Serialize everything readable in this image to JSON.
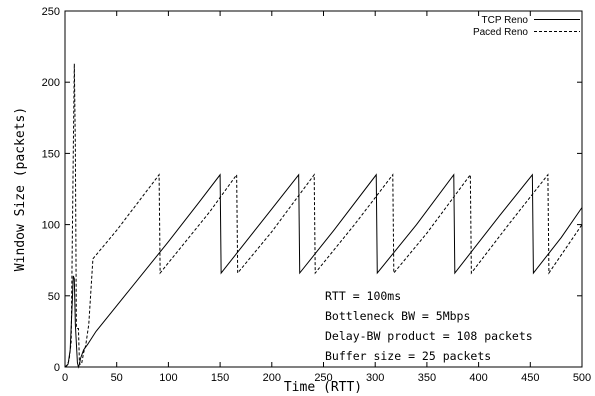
{
  "chart_data": {
    "type": "line",
    "title": "",
    "xlabel": "Time (RTT)",
    "ylabel": "Window Size (packets)",
    "xlim": [
      0,
      500
    ],
    "ylim": [
      0,
      250
    ],
    "xticks": [
      "0",
      "50",
      "100",
      "150",
      "200",
      "250",
      "300",
      "350",
      "400",
      "450",
      "500"
    ],
    "yticks": [
      "0",
      "50",
      "100",
      "150",
      "200",
      "250"
    ],
    "grid": false,
    "legend_position": "top-right",
    "series": [
      {
        "name": "TCP Reno",
        "style": "solid",
        "x": [
          0,
          3,
          5,
          7,
          8,
          9,
          10,
          12,
          13,
          14,
          15,
          18,
          22,
          30,
          60,
          100,
          130,
          150,
          151,
          200,
          226,
          227,
          260,
          301,
          302,
          340,
          376,
          377,
          420,
          452,
          453,
          480,
          500
        ],
        "y": [
          0,
          2,
          12,
          45,
          64,
          62,
          30,
          3,
          0,
          2,
          6,
          12,
          16,
          25,
          52,
          88,
          116,
          135,
          66,
          111,
          135,
          66,
          96,
          135,
          66,
          100,
          135,
          66,
          106,
          135,
          66,
          91,
          112
        ]
      },
      {
        "name": "Paced Reno",
        "style": "dashed",
        "x": [
          0,
          2,
          4,
          6,
          8,
          9,
          10,
          11,
          12,
          13,
          14,
          16,
          18,
          20,
          23,
          27,
          50,
          91,
          92,
          140,
          166,
          167,
          200,
          241,
          242,
          280,
          317,
          318,
          350,
          392,
          393,
          430,
          467,
          468,
          500
        ],
        "y": [
          0,
          1,
          5,
          18,
          150,
          213,
          155,
          28,
          27,
          27,
          2,
          2,
          10,
          15,
          30,
          76,
          96,
          135,
          66,
          109,
          135,
          66,
          95,
          135,
          66,
          100,
          135,
          66,
          94,
          135,
          66,
          101,
          135,
          66,
          100
        ]
      }
    ],
    "annotations": [
      "RTT = 100ms",
      "Bottleneck BW = 5Mbps",
      "Delay-BW product = 108 packets",
      "Buffer size = 25 packets"
    ]
  }
}
